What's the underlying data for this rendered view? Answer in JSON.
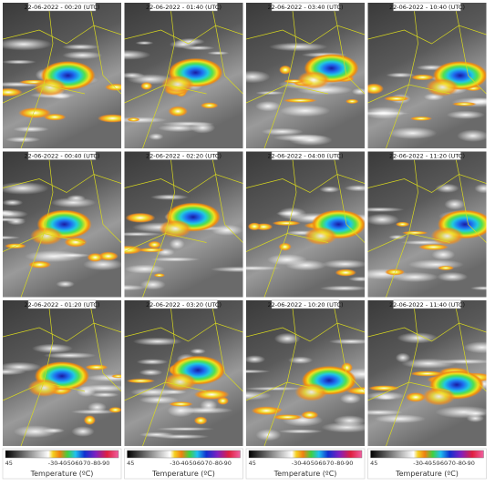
{
  "panels": [
    {
      "timestamp": "22-06-2022 - 00:20 (UTC)"
    },
    {
      "timestamp": "22-06-2022 - 01:40 (UTC)"
    },
    {
      "timestamp": "22-06-2022 - 03:40 (UTC)"
    },
    {
      "timestamp": "22-06-2022 - 10:40 (UTC)"
    },
    {
      "timestamp": "22-06-2022 - 00:40 (UTC)"
    },
    {
      "timestamp": "22-06-2022 - 02:20 (UTC)"
    },
    {
      "timestamp": "22-06-2022 - 04:00 (UTC)"
    },
    {
      "timestamp": "22-06-2022 - 11:20 (UTC)"
    },
    {
      "timestamp": "22-06-2022 - 01:20 (UTC)"
    },
    {
      "timestamp": "22-06-2022 - 03:20 (UTC)"
    },
    {
      "timestamp": "22-06-2022 - 10:20 (UTC)"
    },
    {
      "timestamp": "22-06-2022 - 11:40 (UTC)"
    }
  ],
  "colorbar": {
    "ticks": [
      "45",
      "-30",
      "-40",
      "-50",
      "-60",
      "-70",
      "-80",
      "-90"
    ],
    "label": "Temperature (ºC)"
  }
}
